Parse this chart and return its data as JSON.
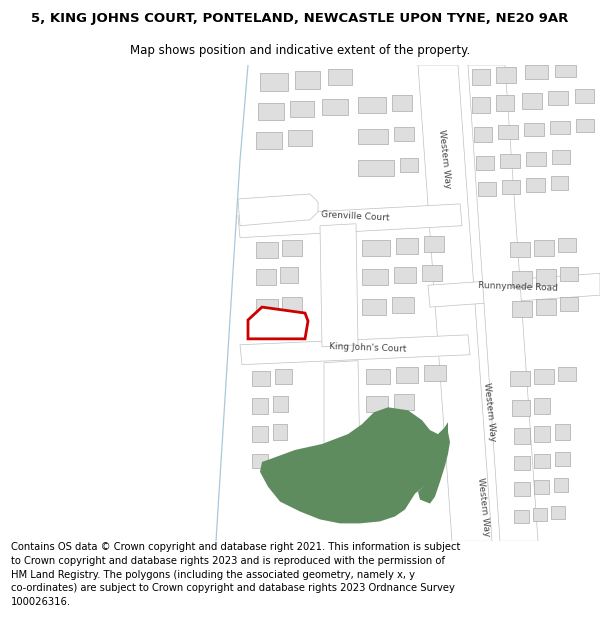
{
  "title_line1": "5, KING JOHNS COURT, PONTELAND, NEWCASTLE UPON TYNE, NE20 9AR",
  "title_line2": "Map shows position and indicative extent of the property.",
  "footer_text": "Contains OS data © Crown copyright and database right 2021. This information is subject\nto Crown copyright and database rights 2023 and is reproduced with the permission of\nHM Land Registry. The polygons (including the associated geometry, namely x, y\nco-ordinates) are subject to Crown copyright and database rights 2023 Ordnance Survey\n100026316.",
  "bg_color": "#ffffff",
  "map_bg": "#f7f7f7",
  "road_color": "#ffffff",
  "road_edge": "#c0c0c0",
  "building_fill": "#dedede",
  "building_edge": "#aaaaaa",
  "green_fill": "#5e8c5e",
  "red_color": "#cc0000",
  "blue_color": "#aac8dc",
  "title_fontsize": 9.5,
  "subtitle_fontsize": 8.5,
  "footer_fontsize": 7.2,
  "label_color": "#444444"
}
